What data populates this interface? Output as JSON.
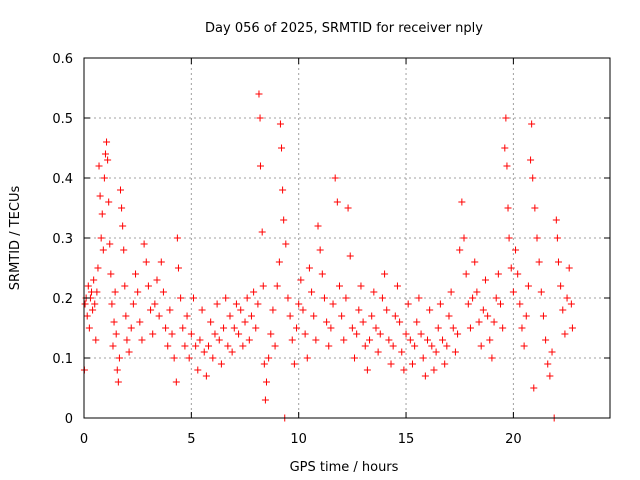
{
  "chart_data": {
    "type": "scatter",
    "title": "Day 056 of 2025, SRMTID for receiver nply",
    "xlabel": "GPS time / hours",
    "ylabel": "SRMTID / TECUs",
    "xlim": [
      0,
      24.5
    ],
    "ylim": [
      0,
      0.6
    ],
    "xticks": [
      0,
      5,
      10,
      15,
      20
    ],
    "xtick_labels": [
      "0",
      "5",
      "10",
      "15",
      "20"
    ],
    "yticks": [
      0,
      0.1,
      0.2,
      0.3,
      0.4,
      0.5,
      0.6
    ],
    "ytick_labels": [
      "0",
      "0.1",
      "0.2",
      "0.3",
      "0.4",
      "0.5",
      "0.6"
    ],
    "grid": true,
    "marker": "plus",
    "color": "#ff0000",
    "series": [
      {
        "name": "SRMTID",
        "points": [
          [
            0.02,
            0.08
          ],
          [
            0.05,
            0.19
          ],
          [
            0.1,
            0.2
          ],
          [
            0.15,
            0.17
          ],
          [
            0.2,
            0.22
          ],
          [
            0.25,
            0.15
          ],
          [
            0.3,
            0.2
          ],
          [
            0.35,
            0.21
          ],
          [
            0.4,
            0.18
          ],
          [
            0.45,
            0.23
          ],
          [
            0.5,
            0.19
          ],
          [
            0.55,
            0.13
          ],
          [
            0.6,
            0.21
          ],
          [
            0.65,
            0.25
          ],
          [
            0.7,
            0.42
          ],
          [
            0.75,
            0.37
          ],
          [
            0.8,
            0.3
          ],
          [
            0.85,
            0.34
          ],
          [
            0.9,
            0.28
          ],
          [
            0.95,
            0.4
          ],
          [
            1.0,
            0.44
          ],
          [
            1.05,
            0.46
          ],
          [
            1.1,
            0.43
          ],
          [
            1.15,
            0.36
          ],
          [
            1.2,
            0.29
          ],
          [
            1.25,
            0.24
          ],
          [
            1.3,
            0.19
          ],
          [
            1.35,
            0.12
          ],
          [
            1.4,
            0.16
          ],
          [
            1.45,
            0.21
          ],
          [
            1.5,
            0.14
          ],
          [
            1.55,
            0.08
          ],
          [
            1.6,
            0.06
          ],
          [
            1.65,
            0.1
          ],
          [
            1.7,
            0.38
          ],
          [
            1.75,
            0.35
          ],
          [
            1.8,
            0.32
          ],
          [
            1.85,
            0.28
          ],
          [
            1.9,
            0.22
          ],
          [
            1.95,
            0.17
          ],
          [
            2.0,
            0.13
          ],
          [
            2.1,
            0.11
          ],
          [
            2.2,
            0.15
          ],
          [
            2.3,
            0.19
          ],
          [
            2.4,
            0.24
          ],
          [
            2.5,
            0.21
          ],
          [
            2.6,
            0.16
          ],
          [
            2.7,
            0.13
          ],
          [
            2.8,
            0.29
          ],
          [
            2.9,
            0.26
          ],
          [
            3.0,
            0.22
          ],
          [
            3.1,
            0.18
          ],
          [
            3.2,
            0.14
          ],
          [
            3.3,
            0.19
          ],
          [
            3.4,
            0.23
          ],
          [
            3.5,
            0.17
          ],
          [
            3.6,
            0.26
          ],
          [
            3.7,
            0.21
          ],
          [
            3.8,
            0.15
          ],
          [
            3.9,
            0.12
          ],
          [
            4.0,
            0.18
          ],
          [
            4.1,
            0.14
          ],
          [
            4.2,
            0.1
          ],
          [
            4.3,
            0.06
          ],
          [
            4.35,
            0.3
          ],
          [
            4.4,
            0.25
          ],
          [
            4.5,
            0.2
          ],
          [
            4.6,
            0.15
          ],
          [
            4.7,
            0.12
          ],
          [
            4.8,
            0.17
          ],
          [
            4.9,
            0.1
          ],
          [
            5.0,
            0.14
          ],
          [
            5.1,
            0.2
          ],
          [
            5.2,
            0.12
          ],
          [
            5.3,
            0.08
          ],
          [
            5.4,
            0.13
          ],
          [
            5.5,
            0.18
          ],
          [
            5.6,
            0.11
          ],
          [
            5.7,
            0.07
          ],
          [
            5.8,
            0.12
          ],
          [
            5.9,
            0.16
          ],
          [
            6.0,
            0.1
          ],
          [
            6.1,
            0.14
          ],
          [
            6.2,
            0.19
          ],
          [
            6.3,
            0.13
          ],
          [
            6.4,
            0.09
          ],
          [
            6.5,
            0.15
          ],
          [
            6.6,
            0.2
          ],
          [
            6.7,
            0.12
          ],
          [
            6.8,
            0.17
          ],
          [
            6.9,
            0.11
          ],
          [
            7.0,
            0.15
          ],
          [
            7.1,
            0.19
          ],
          [
            7.2,
            0.14
          ],
          [
            7.3,
            0.18
          ],
          [
            7.4,
            0.12
          ],
          [
            7.5,
            0.16
          ],
          [
            7.6,
            0.2
          ],
          [
            7.7,
            0.13
          ],
          [
            7.8,
            0.17
          ],
          [
            7.9,
            0.21
          ],
          [
            8.0,
            0.15
          ],
          [
            8.1,
            0.19
          ],
          [
            8.15,
            0.54
          ],
          [
            8.2,
            0.5
          ],
          [
            8.22,
            0.42
          ],
          [
            8.3,
            0.31
          ],
          [
            8.35,
            0.22
          ],
          [
            8.4,
            0.09
          ],
          [
            8.45,
            0.03
          ],
          [
            8.5,
            0.06
          ],
          [
            8.6,
            0.1
          ],
          [
            8.7,
            0.14
          ],
          [
            8.8,
            0.18
          ],
          [
            8.9,
            0.12
          ],
          [
            9.0,
            0.22
          ],
          [
            9.1,
            0.26
          ],
          [
            9.15,
            0.49
          ],
          [
            9.2,
            0.45
          ],
          [
            9.25,
            0.38
          ],
          [
            9.3,
            0.33
          ],
          [
            9.35,
            0.0
          ],
          [
            9.4,
            0.29
          ],
          [
            9.5,
            0.2
          ],
          [
            9.6,
            0.17
          ],
          [
            9.7,
            0.13
          ],
          [
            9.8,
            0.09
          ],
          [
            9.9,
            0.15
          ],
          [
            10.0,
            0.19
          ],
          [
            10.1,
            0.23
          ],
          [
            10.2,
            0.18
          ],
          [
            10.3,
            0.14
          ],
          [
            10.4,
            0.1
          ],
          [
            10.5,
            0.25
          ],
          [
            10.6,
            0.21
          ],
          [
            10.7,
            0.17
          ],
          [
            10.8,
            0.13
          ],
          [
            10.9,
            0.32
          ],
          [
            11.0,
            0.28
          ],
          [
            11.1,
            0.24
          ],
          [
            11.2,
            0.2
          ],
          [
            11.3,
            0.16
          ],
          [
            11.4,
            0.12
          ],
          [
            11.5,
            0.15
          ],
          [
            11.6,
            0.19
          ],
          [
            11.7,
            0.4
          ],
          [
            11.8,
            0.36
          ],
          [
            11.9,
            0.22
          ],
          [
            12.0,
            0.17
          ],
          [
            12.1,
            0.13
          ],
          [
            12.2,
            0.2
          ],
          [
            12.3,
            0.35
          ],
          [
            12.4,
            0.27
          ],
          [
            12.5,
            0.15
          ],
          [
            12.6,
            0.1
          ],
          [
            12.7,
            0.14
          ],
          [
            12.8,
            0.18
          ],
          [
            12.9,
            0.22
          ],
          [
            13.0,
            0.16
          ],
          [
            13.1,
            0.12
          ],
          [
            13.2,
            0.08
          ],
          [
            13.3,
            0.13
          ],
          [
            13.4,
            0.17
          ],
          [
            13.5,
            0.21
          ],
          [
            13.6,
            0.15
          ],
          [
            13.7,
            0.11
          ],
          [
            13.8,
            0.14
          ],
          [
            13.9,
            0.2
          ],
          [
            14.0,
            0.24
          ],
          [
            14.1,
            0.18
          ],
          [
            14.2,
            0.13
          ],
          [
            14.3,
            0.09
          ],
          [
            14.4,
            0.12
          ],
          [
            14.5,
            0.17
          ],
          [
            14.6,
            0.22
          ],
          [
            14.7,
            0.16
          ],
          [
            14.8,
            0.11
          ],
          [
            14.9,
            0.08
          ],
          [
            15.0,
            0.14
          ],
          [
            15.1,
            0.19
          ],
          [
            15.2,
            0.13
          ],
          [
            15.3,
            0.09
          ],
          [
            15.4,
            0.12
          ],
          [
            15.5,
            0.16
          ],
          [
            15.6,
            0.2
          ],
          [
            15.7,
            0.14
          ],
          [
            15.8,
            0.1
          ],
          [
            15.9,
            0.07
          ],
          [
            16.0,
            0.13
          ],
          [
            16.1,
            0.18
          ],
          [
            16.2,
            0.12
          ],
          [
            16.3,
            0.08
          ],
          [
            16.4,
            0.11
          ],
          [
            16.5,
            0.15
          ],
          [
            16.6,
            0.19
          ],
          [
            16.7,
            0.13
          ],
          [
            16.8,
            0.09
          ],
          [
            16.9,
            0.12
          ],
          [
            17.0,
            0.17
          ],
          [
            17.1,
            0.21
          ],
          [
            17.2,
            0.15
          ],
          [
            17.3,
            0.11
          ],
          [
            17.4,
            0.14
          ],
          [
            17.5,
            0.28
          ],
          [
            17.6,
            0.36
          ],
          [
            17.7,
            0.3
          ],
          [
            17.8,
            0.24
          ],
          [
            17.9,
            0.19
          ],
          [
            18.0,
            0.15
          ],
          [
            18.1,
            0.2
          ],
          [
            18.2,
            0.26
          ],
          [
            18.3,
            0.21
          ],
          [
            18.4,
            0.16
          ],
          [
            18.5,
            0.12
          ],
          [
            18.6,
            0.18
          ],
          [
            18.7,
            0.23
          ],
          [
            18.8,
            0.17
          ],
          [
            18.9,
            0.13
          ],
          [
            19.0,
            0.1
          ],
          [
            19.1,
            0.16
          ],
          [
            19.2,
            0.2
          ],
          [
            19.3,
            0.24
          ],
          [
            19.4,
            0.19
          ],
          [
            19.5,
            0.15
          ],
          [
            19.6,
            0.45
          ],
          [
            19.65,
            0.5
          ],
          [
            19.7,
            0.42
          ],
          [
            19.75,
            0.35
          ],
          [
            19.8,
            0.3
          ],
          [
            19.9,
            0.25
          ],
          [
            20.0,
            0.21
          ],
          [
            20.1,
            0.28
          ],
          [
            20.2,
            0.24
          ],
          [
            20.3,
            0.19
          ],
          [
            20.4,
            0.15
          ],
          [
            20.5,
            0.12
          ],
          [
            20.6,
            0.17
          ],
          [
            20.7,
            0.22
          ],
          [
            20.8,
            0.43
          ],
          [
            20.85,
            0.49
          ],
          [
            20.9,
            0.4
          ],
          [
            20.95,
            0.05
          ],
          [
            21.0,
            0.35
          ],
          [
            21.1,
            0.3
          ],
          [
            21.2,
            0.26
          ],
          [
            21.3,
            0.21
          ],
          [
            21.4,
            0.17
          ],
          [
            21.5,
            0.13
          ],
          [
            21.6,
            0.09
          ],
          [
            21.7,
            0.07
          ],
          [
            21.8,
            0.11
          ],
          [
            21.9,
            0.0
          ],
          [
            22.0,
            0.33
          ],
          [
            22.05,
            0.3
          ],
          [
            22.1,
            0.26
          ],
          [
            22.2,
            0.22
          ],
          [
            22.3,
            0.18
          ],
          [
            22.4,
            0.14
          ],
          [
            22.5,
            0.2
          ],
          [
            22.6,
            0.25
          ],
          [
            22.7,
            0.19
          ],
          [
            22.75,
            0.15
          ]
        ]
      }
    ]
  }
}
